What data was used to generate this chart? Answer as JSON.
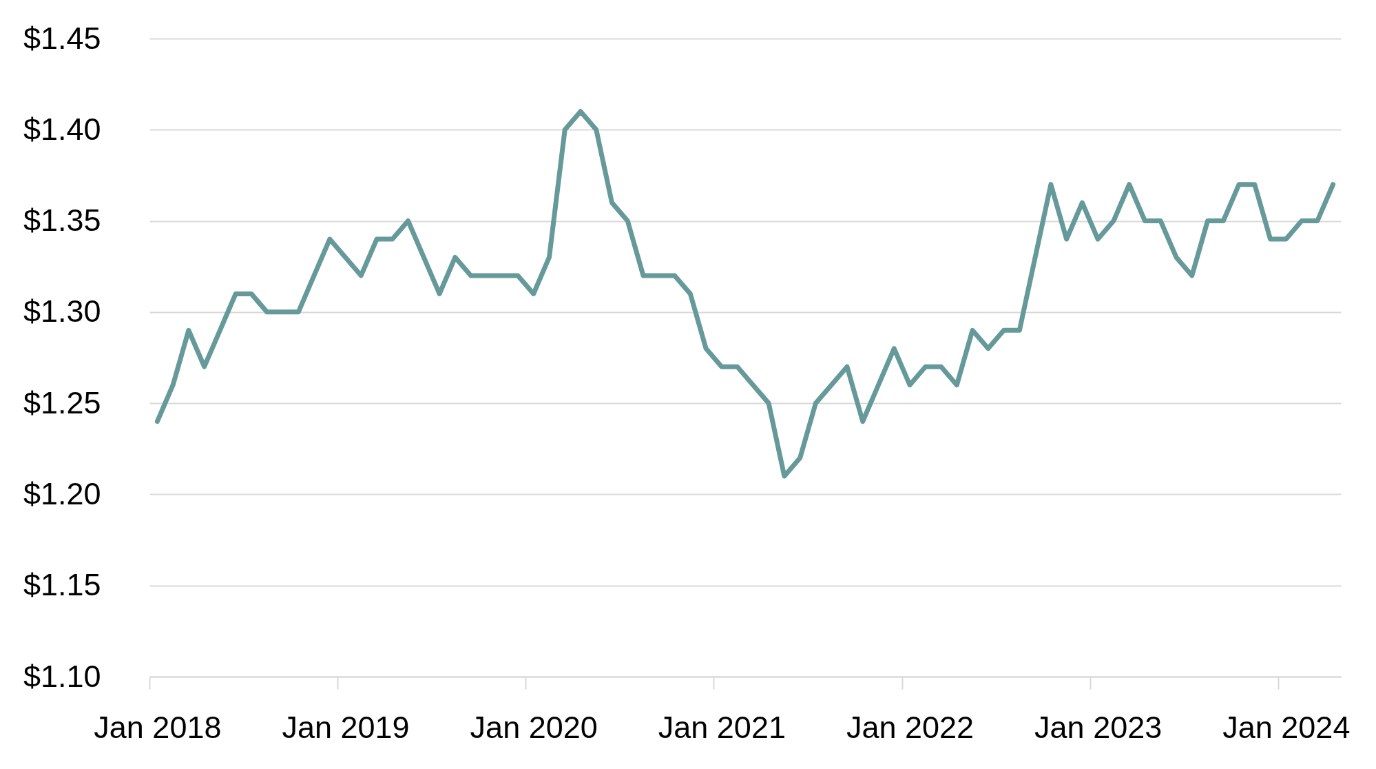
{
  "chart_data": {
    "type": "line",
    "categories": [
      "Jan 2018",
      null,
      null,
      null,
      null,
      null,
      null,
      null,
      null,
      null,
      null,
      null,
      "Jan 2019",
      null,
      null,
      null,
      null,
      null,
      null,
      null,
      null,
      null,
      null,
      null,
      "Jan 2020",
      null,
      null,
      null,
      null,
      null,
      null,
      null,
      null,
      null,
      null,
      null,
      "Jan 2021",
      null,
      null,
      null,
      null,
      null,
      null,
      null,
      null,
      null,
      null,
      null,
      "Jan 2022",
      null,
      null,
      null,
      null,
      null,
      null,
      null,
      null,
      null,
      null,
      null,
      "Jan 2023",
      null,
      null,
      null,
      null,
      null,
      null,
      null,
      null,
      null,
      null,
      null,
      "Jan 2024",
      null,
      null,
      null
    ],
    "series": [
      {
        "color": "#669999",
        "values": [
          1.24,
          1.26,
          1.29,
          1.27,
          1.29,
          1.31,
          1.31,
          1.3,
          1.3,
          1.3,
          1.32,
          1.34,
          1.33,
          1.32,
          1.34,
          1.34,
          1.35,
          1.33,
          1.31,
          1.33,
          1.32,
          1.32,
          1.32,
          1.32,
          1.31,
          1.33,
          1.4,
          1.41,
          1.4,
          1.36,
          1.35,
          1.32,
          1.32,
          1.32,
          1.31,
          1.28,
          1.27,
          1.27,
          1.26,
          1.25,
          1.21,
          1.22,
          1.25,
          1.26,
          1.27,
          1.24,
          1.26,
          1.28,
          1.26,
          1.27,
          1.27,
          1.26,
          1.29,
          1.28,
          1.29,
          1.29,
          1.33,
          1.37,
          1.34,
          1.36,
          1.34,
          1.35,
          1.37,
          1.35,
          1.35,
          1.33,
          1.32,
          1.35,
          1.35,
          1.37,
          1.37,
          1.34,
          1.34,
          1.35,
          1.35,
          1.37
        ]
      }
    ],
    "ylim": [
      1.1,
      1.45
    ],
    "yticks": [
      {
        "value": 1.1,
        "label": "$1.10"
      },
      {
        "value": 1.15,
        "label": "$1.15"
      },
      {
        "value": 1.2,
        "label": "$1.20"
      },
      {
        "value": 1.25,
        "label": "$1.25"
      },
      {
        "value": 1.3,
        "label": "$1.30"
      },
      {
        "value": 1.35,
        "label": "$1.35"
      },
      {
        "value": 1.4,
        "label": "$1.40"
      },
      {
        "value": 1.45,
        "label": "$1.45"
      }
    ],
    "grid": "y",
    "line_style": "solid"
  }
}
